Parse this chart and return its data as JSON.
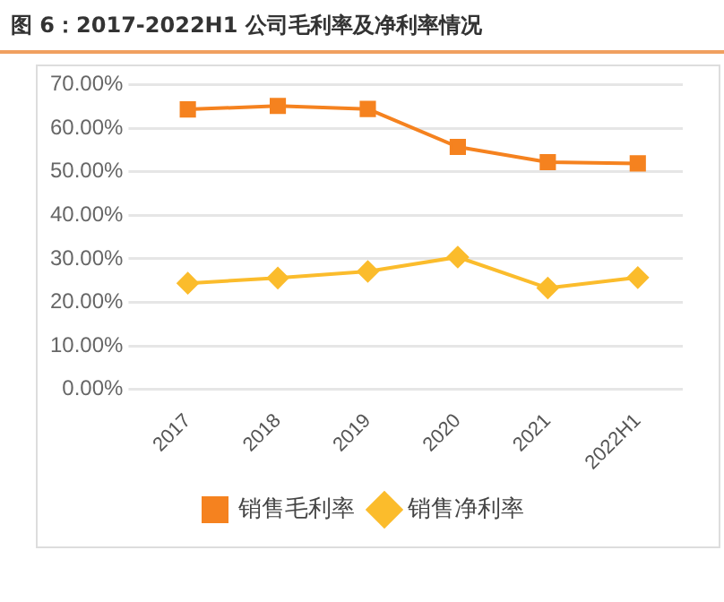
{
  "chart_data": {
    "type": "line",
    "title": "图 6：2017-2022H1 公司毛利率及净利率情况",
    "categories": [
      "2017",
      "2018",
      "2019",
      "2020",
      "2021",
      "2022H1"
    ],
    "series": [
      {
        "name": "销售毛利率",
        "color": "#f5821f",
        "marker": "square",
        "values": [
          64.3,
          65.1,
          64.4,
          55.7,
          52.2,
          51.9
        ]
      },
      {
        "name": "销售净利率",
        "color": "#fbbc2c",
        "marker": "diamond",
        "values": [
          24.4,
          25.6,
          27.1,
          30.4,
          23.3,
          25.7
        ]
      }
    ],
    "ylim": [
      0,
      70
    ],
    "yticks": [
      {
        "value": 0,
        "label": "0.00%"
      },
      {
        "value": 10,
        "label": "10.00%"
      },
      {
        "value": 20,
        "label": "20.00%"
      },
      {
        "value": 30,
        "label": "30.00%"
      },
      {
        "value": 40,
        "label": "40.00%"
      },
      {
        "value": 50,
        "label": "50.00%"
      },
      {
        "value": 60,
        "label": "60.00%"
      },
      {
        "value": 70,
        "label": "70.00%"
      }
    ],
    "grid": "y",
    "legend": "bottom"
  }
}
